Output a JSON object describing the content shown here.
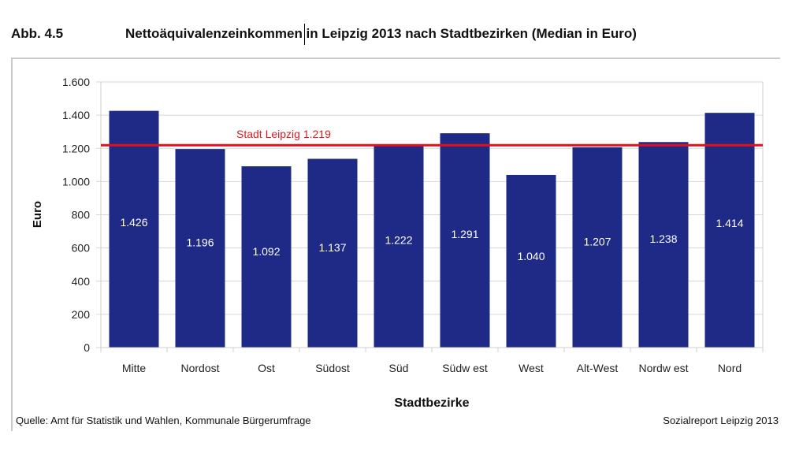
{
  "header": {
    "figure_number": "Abb. 4.5",
    "title": "Nettoäquivalenzeinkommen in Leipzig 2013 nach Stadtbezirken (Median in Euro)"
  },
  "footer": {
    "source": "Quelle: Amt für Statistik und Wahlen, Kommunale Bürgerumfrage",
    "report": "Sozialreport Leipzig 2013"
  },
  "colors": {
    "bar": "#1f2a86",
    "reference_line": "#e3101b",
    "reference_label": "#d81b22",
    "grid": "#d6d6d6",
    "bar_label": "#ffffff"
  },
  "chart_data": {
    "type": "bar",
    "title": "Nettoäquivalenzeinkommen in Leipzig 2013 nach Stadtbezirken (Median in Euro)",
    "xlabel": "Stadtbezirke",
    "ylabel": "Euro",
    "categories": [
      "Mitte",
      "Nordost",
      "Ost",
      "Südost",
      "Süd",
      "Südw est",
      "West",
      "Alt-West",
      "Nordw est",
      "Nord"
    ],
    "values": [
      1426,
      1196,
      1092,
      1137,
      1222,
      1291,
      1040,
      1207,
      1238,
      1414
    ],
    "value_labels": [
      "1.426",
      "1.196",
      "1.092",
      "1.137",
      "1.222",
      "1.291",
      "1.040",
      "1.207",
      "1.238",
      "1.414"
    ],
    "ylim": [
      0,
      1600
    ],
    "yticks": [
      0,
      200,
      400,
      600,
      800,
      1000,
      1200,
      1400,
      1600
    ],
    "ytick_labels": [
      "0",
      "200",
      "400",
      "600",
      "800",
      "1.000",
      "1.200",
      "1.400",
      "1.600"
    ],
    "grid": true,
    "legend": "none",
    "reference_line": {
      "value": 1219,
      "label": "Stadt Leipzig 1.219"
    }
  }
}
